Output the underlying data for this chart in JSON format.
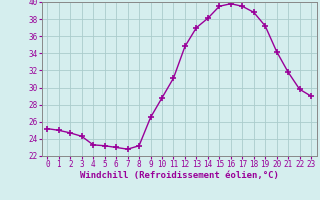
{
  "x": [
    0,
    1,
    2,
    3,
    4,
    5,
    6,
    7,
    8,
    9,
    10,
    11,
    12,
    13,
    14,
    15,
    16,
    17,
    18,
    19,
    20,
    21,
    22,
    23
  ],
  "y": [
    25.2,
    25.0,
    24.7,
    24.3,
    23.3,
    23.2,
    23.0,
    22.8,
    23.2,
    26.5,
    28.8,
    31.1,
    34.8,
    37.0,
    38.1,
    39.5,
    39.8,
    39.5,
    38.8,
    37.2,
    34.2,
    31.8,
    29.8,
    29.0
  ],
  "line_color": "#990099",
  "marker": "+",
  "marker_size": 4,
  "marker_lw": 1.2,
  "line_width": 1.0,
  "bg_color": "#d5eeee",
  "grid_color": "#aacccc",
  "xlabel": "Windchill (Refroidissement éolien,°C)",
  "xlabel_color": "#990099",
  "tick_color": "#990099",
  "ylim": [
    22,
    40
  ],
  "yticks": [
    22,
    24,
    26,
    28,
    30,
    32,
    34,
    36,
    38,
    40
  ],
  "xlim": [
    -0.5,
    23.5
  ],
  "xticks": [
    0,
    1,
    2,
    3,
    4,
    5,
    6,
    7,
    8,
    9,
    10,
    11,
    12,
    13,
    14,
    15,
    16,
    17,
    18,
    19,
    20,
    21,
    22,
    23
  ],
  "tick_fontsize": 5.5,
  "xlabel_fontsize": 6.5
}
